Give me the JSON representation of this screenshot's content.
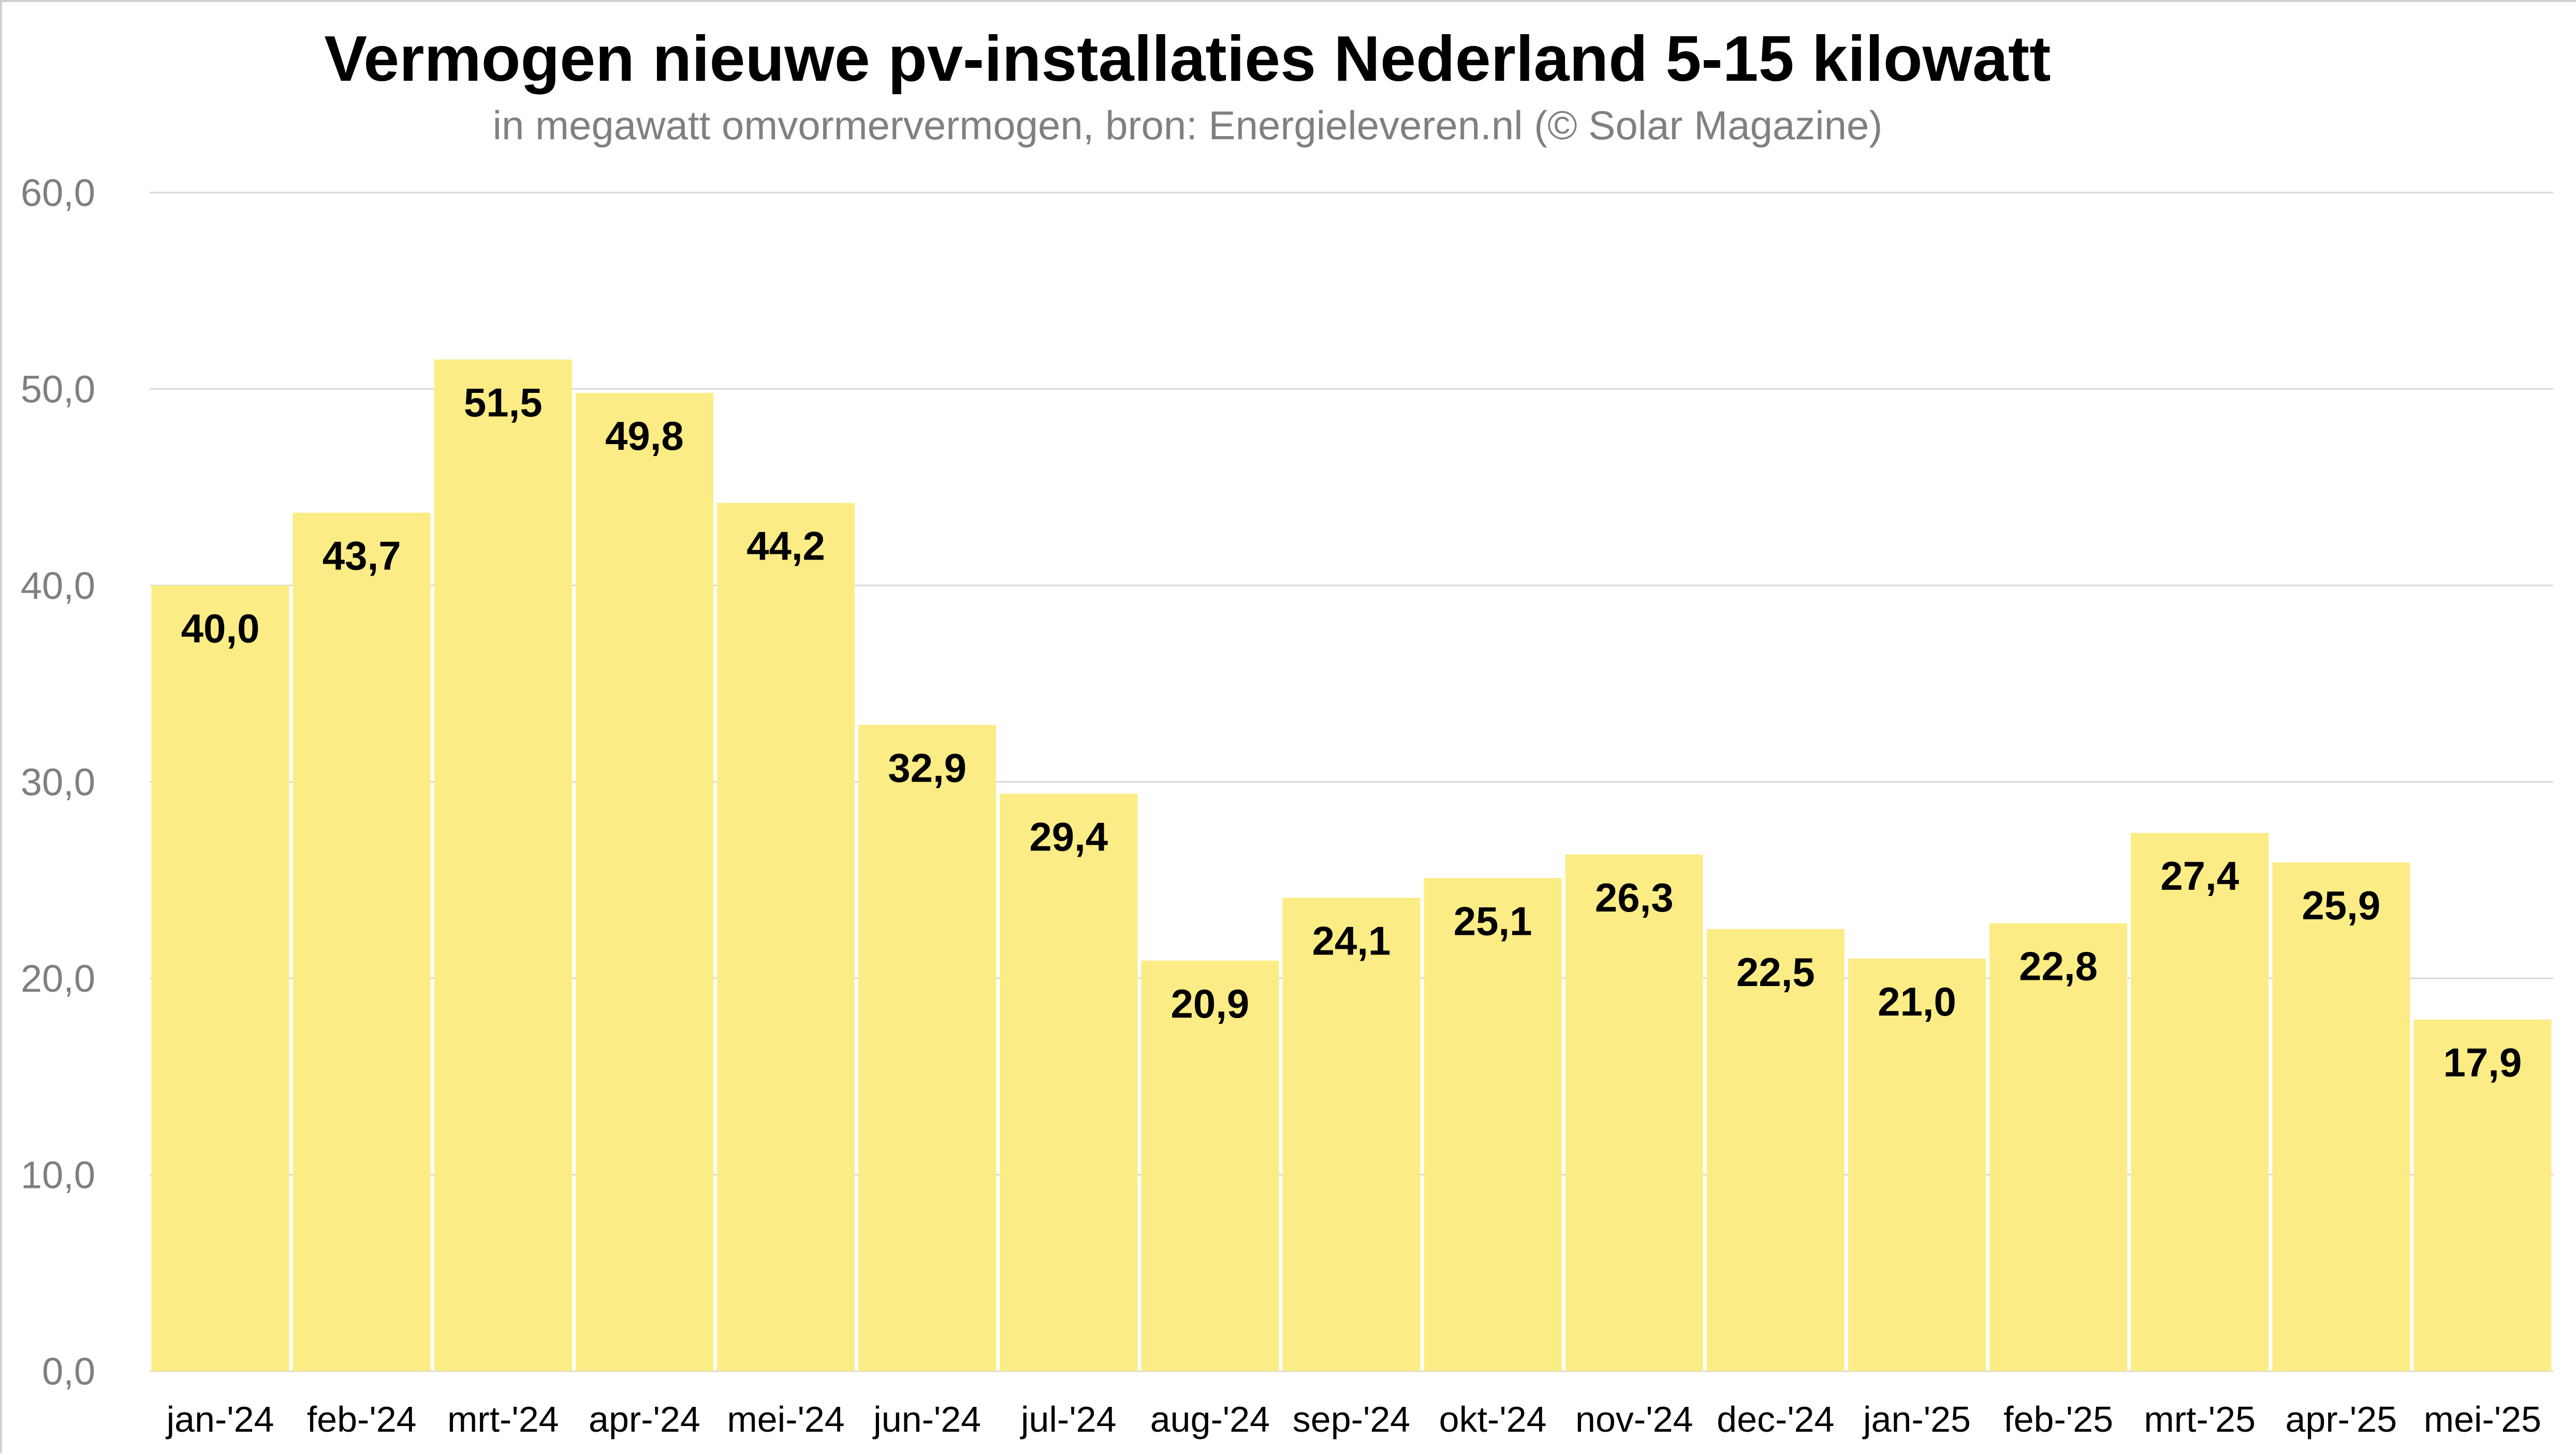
{
  "chart_data": {
    "type": "bar",
    "title": "Vermogen nieuwe pv-installaties Nederland 5-15 kilowatt",
    "subtitle": "in megawatt omvormervermogen, bron: Energieleveren.nl (© Solar Magazine)",
    "xlabel": "",
    "ylabel": "",
    "categories": [
      "jan-'24",
      "feb-'24",
      "mrt-'24",
      "apr-'24",
      "mei-'24",
      "jun-'24",
      "jul-'24",
      "aug-'24",
      "sep-'24",
      "okt-'24",
      "nov-'24",
      "dec-'24",
      "jan-'25",
      "feb-'25",
      "mrt-'25",
      "apr-'25",
      "mei-'25"
    ],
    "values": [
      40.0,
      43.7,
      51.5,
      49.8,
      44.2,
      32.9,
      29.4,
      20.9,
      24.1,
      25.1,
      26.3,
      22.5,
      21.0,
      22.8,
      27.4,
      25.9,
      17.9
    ],
    "value_labels": [
      "40,0",
      "43,7",
      "51,5",
      "49,8",
      "44,2",
      "32,9",
      "29,4",
      "20,9",
      "24,1",
      "25,1",
      "26,3",
      "22,5",
      "21,0",
      "22,8",
      "27,4",
      "25,9",
      "17,9"
    ],
    "ylim": [
      0,
      60
    ],
    "yticks": [
      0,
      10,
      20,
      30,
      40,
      50,
      60
    ],
    "ytick_labels": [
      "0,0",
      "10,0",
      "20,0",
      "30,0",
      "40,0",
      "50,0",
      "60,0"
    ],
    "grid": true,
    "legend": "none",
    "colors": {
      "bar": "#fcec85",
      "gridline": "#d9d9d9",
      "axis_text": "#7f7f7f",
      "label_text": "#000000"
    }
  }
}
